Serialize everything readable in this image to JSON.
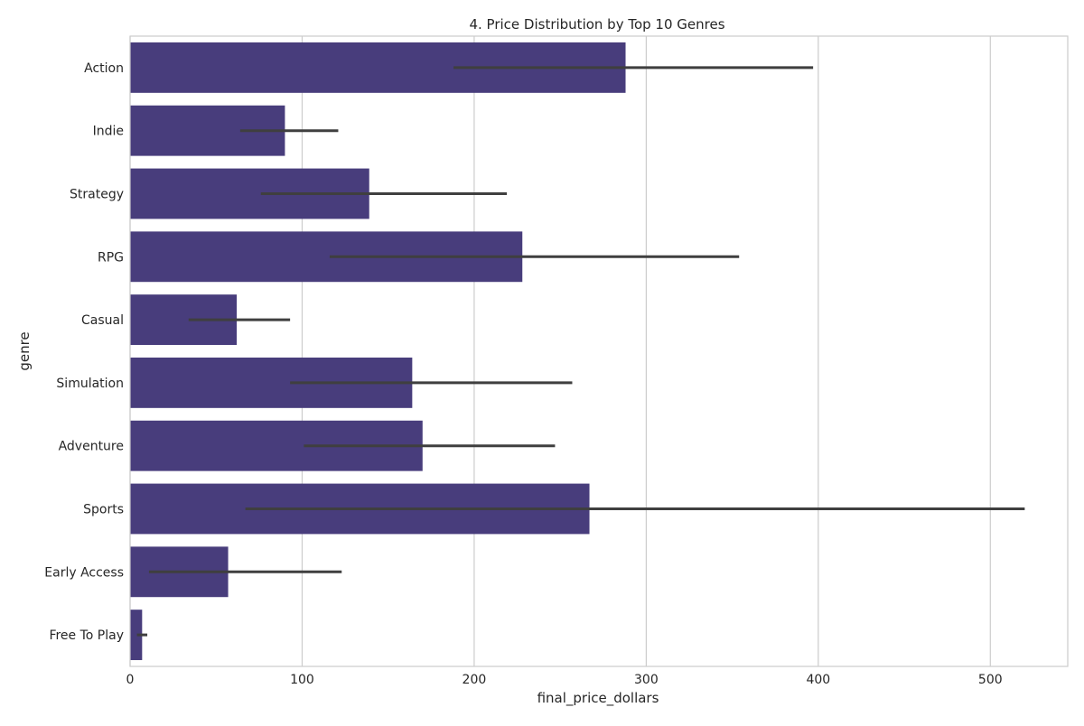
{
  "chart_data": {
    "type": "bar",
    "orientation": "horizontal",
    "title": "4. Price Distribution by Top 10 Genres",
    "xlabel": "final_price_dollars",
    "ylabel": "genre",
    "xlim": [
      0,
      545
    ],
    "xticks": [
      0,
      100,
      200,
      300,
      400,
      500
    ],
    "grid": true,
    "bar_color": "#483D7C",
    "errorbar_color": "#3F3F3F",
    "grid_color": "#CCCCCC",
    "categories": [
      "Action",
      "Indie",
      "Strategy",
      "RPG",
      "Casual",
      "Simulation",
      "Adventure",
      "Sports",
      "Early Access",
      "Free To Play"
    ],
    "values": [
      288,
      90,
      139,
      228,
      62,
      164,
      170,
      267,
      57,
      7
    ],
    "ci_low": [
      188,
      64,
      76,
      116,
      34,
      93,
      101,
      67,
      11,
      4
    ],
    "ci_high": [
      397,
      121,
      219,
      354,
      93,
      257,
      247,
      520,
      123,
      10
    ]
  }
}
